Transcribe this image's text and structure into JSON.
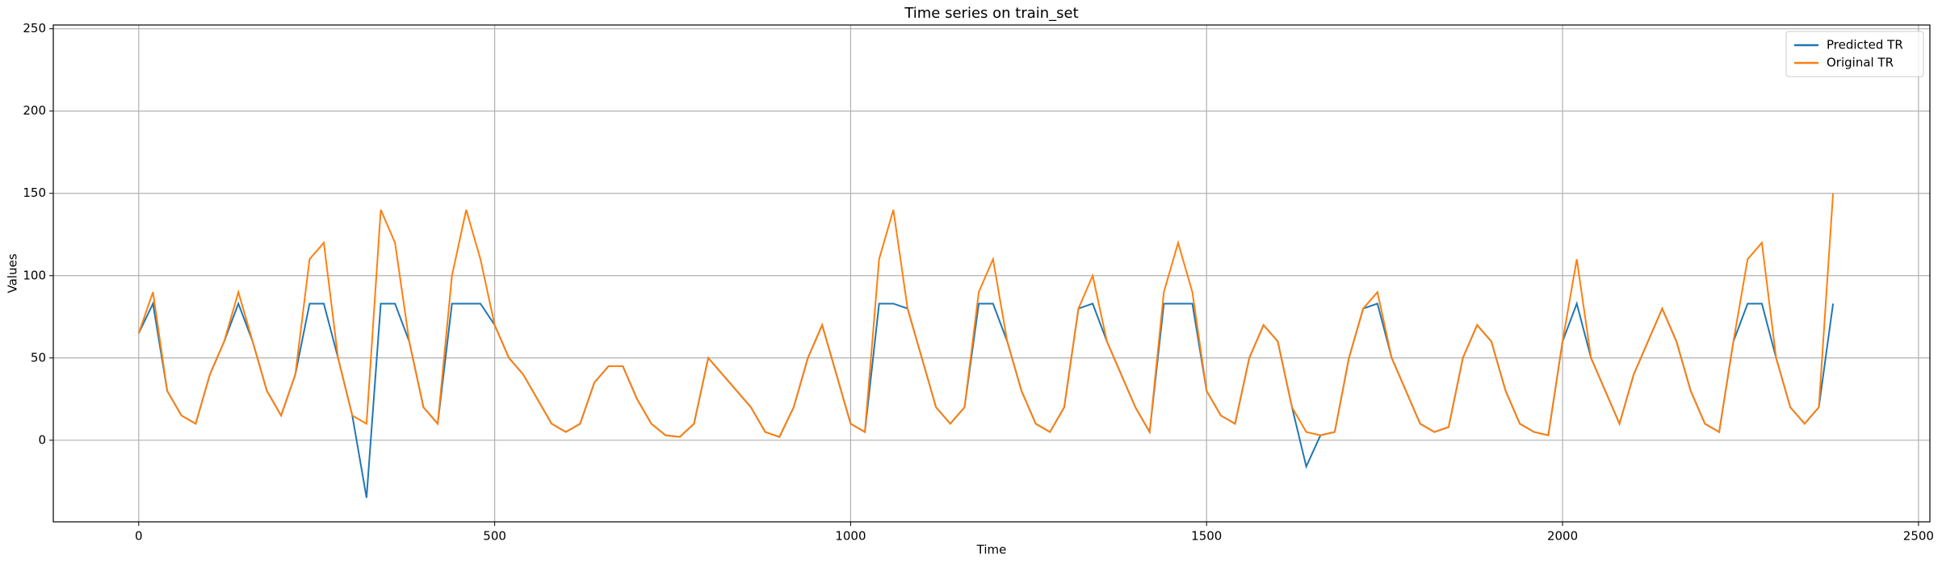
{
  "chart_data": {
    "type": "line",
    "title": "Time series on train_set",
    "xlabel": "Time",
    "ylabel": "Values",
    "x": [
      0,
      20,
      40,
      60,
      80,
      100,
      120,
      140,
      160,
      180,
      200,
      220,
      240,
      260,
      280,
      300,
      320,
      340,
      360,
      380,
      400,
      420,
      440,
      460,
      480,
      500,
      520,
      540,
      560,
      580,
      600,
      620,
      640,
      660,
      680,
      700,
      720,
      740,
      760,
      780,
      800,
      820,
      840,
      860,
      880,
      900,
      920,
      940,
      960,
      980,
      1000,
      1020,
      1040,
      1060,
      1080,
      1100,
      1120,
      1140,
      1160,
      1180,
      1200,
      1220,
      1240,
      1260,
      1280,
      1300,
      1320,
      1340,
      1360,
      1380,
      1400,
      1420,
      1440,
      1460,
      1480,
      1500,
      1520,
      1540,
      1560,
      1580,
      1600,
      1620,
      1640,
      1660,
      1680,
      1700,
      1720,
      1740,
      1760,
      1780,
      1800,
      1820,
      1840,
      1860,
      1880,
      1900,
      1920,
      1940,
      1960,
      1980,
      2000,
      2020,
      2040,
      2060,
      2080,
      2100,
      2120,
      2140,
      2160,
      2180,
      2200,
      2220,
      2240,
      2260,
      2280,
      2300,
      2320,
      2340,
      2360,
      2380
    ],
    "series": [
      {
        "name": "Predicted TR",
        "color": "#1f77b4",
        "values": [
          65,
          83,
          30,
          15,
          10,
          40,
          60,
          83,
          60,
          30,
          15,
          40,
          83,
          83,
          50,
          15,
          -35,
          83,
          83,
          60,
          20,
          10,
          83,
          83,
          83,
          70,
          50,
          40,
          25,
          10,
          5,
          10,
          35,
          45,
          45,
          25,
          10,
          3,
          2,
          10,
          50,
          40,
          30,
          20,
          5,
          2,
          20,
          50,
          70,
          40,
          10,
          5,
          83,
          83,
          80,
          50,
          20,
          10,
          20,
          83,
          83,
          60,
          30,
          10,
          5,
          20,
          80,
          83,
          60,
          40,
          20,
          5,
          83,
          83,
          83,
          30,
          15,
          10,
          50,
          70,
          60,
          20,
          -16,
          3,
          5,
          50,
          80,
          83,
          50,
          30,
          10,
          5,
          8,
          50,
          70,
          60,
          30,
          10,
          5,
          3,
          60,
          83,
          50,
          30,
          10,
          40,
          60,
          80,
          60,
          30,
          10,
          5,
          60,
          83,
          83,
          50,
          20,
          10,
          20,
          83
        ]
      },
      {
        "name": "Original TR",
        "color": "#ff7f0e",
        "values": [
          65,
          90,
          30,
          15,
          10,
          40,
          60,
          90,
          60,
          30,
          15,
          40,
          110,
          120,
          50,
          15,
          10,
          140,
          120,
          60,
          20,
          10,
          100,
          140,
          110,
          70,
          50,
          40,
          25,
          10,
          5,
          10,
          35,
          45,
          45,
          25,
          10,
          3,
          2,
          10,
          50,
          40,
          30,
          20,
          5,
          2,
          20,
          50,
          70,
          40,
          10,
          5,
          110,
          140,
          80,
          50,
          20,
          10,
          20,
          90,
          110,
          60,
          30,
          10,
          5,
          20,
          80,
          100,
          60,
          40,
          20,
          5,
          90,
          120,
          90,
          30,
          15,
          10,
          50,
          70,
          60,
          20,
          5,
          3,
          5,
          50,
          80,
          90,
          50,
          30,
          10,
          5,
          8,
          50,
          70,
          60,
          30,
          10,
          5,
          3,
          60,
          110,
          50,
          30,
          10,
          40,
          60,
          80,
          60,
          30,
          10,
          5,
          60,
          110,
          120,
          50,
          20,
          10,
          20,
          150
        ]
      }
    ],
    "xlim": [
      -120,
      2516
    ],
    "ylim": [
      -49.6,
      252.3
    ],
    "xticks": [
      0,
      500,
      1000,
      1500,
      2000,
      2500
    ],
    "yticks": [
      0,
      50,
      100,
      150,
      200,
      250
    ],
    "grid": true,
    "legend": "upper right"
  }
}
